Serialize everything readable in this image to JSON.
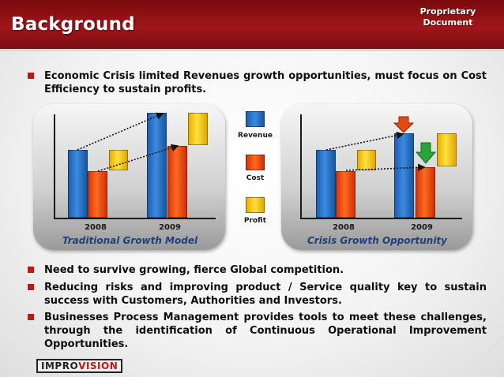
{
  "header": {
    "title": "Background",
    "badge_line1": "Proprietary",
    "badge_line2": "Document"
  },
  "bullets": [
    {
      "text": "Economic Crisis limited Revenues growth opportunities, must focus on Cost Efficiency to sustain profits."
    },
    {
      "text": "Need  to survive growing, fierce Global competition."
    },
    {
      "text": "Reducing risks and improving product / Service quality key to sustain success with Customers, Authorities and Investors."
    },
    {
      "text": "Businesses Process Management provides tools to meet these challenges, through the identification of Continuous Operational Improvement Opportunities."
    }
  ],
  "legend": [
    "Revenue",
    "Cost",
    "Profit"
  ],
  "diagram_left": {
    "caption": "Traditional Growth Model",
    "years": [
      "2008",
      "2009"
    ]
  },
  "diagram_right": {
    "caption": "Crisis Growth Opportunity",
    "years": [
      "2008",
      "2009"
    ]
  },
  "colors": {
    "header": "#a0161a",
    "bullet": "#c01818",
    "revenue": "#2f7ad0",
    "cost": "#f25a18",
    "profit": "#ffd21f",
    "arrow_down": "#e24a12",
    "arrow_down_green": "#2aa33a",
    "caption": "#1f3f7a"
  },
  "logo": {
    "text_a": "IMPRO",
    "text_b": "VISION"
  }
}
